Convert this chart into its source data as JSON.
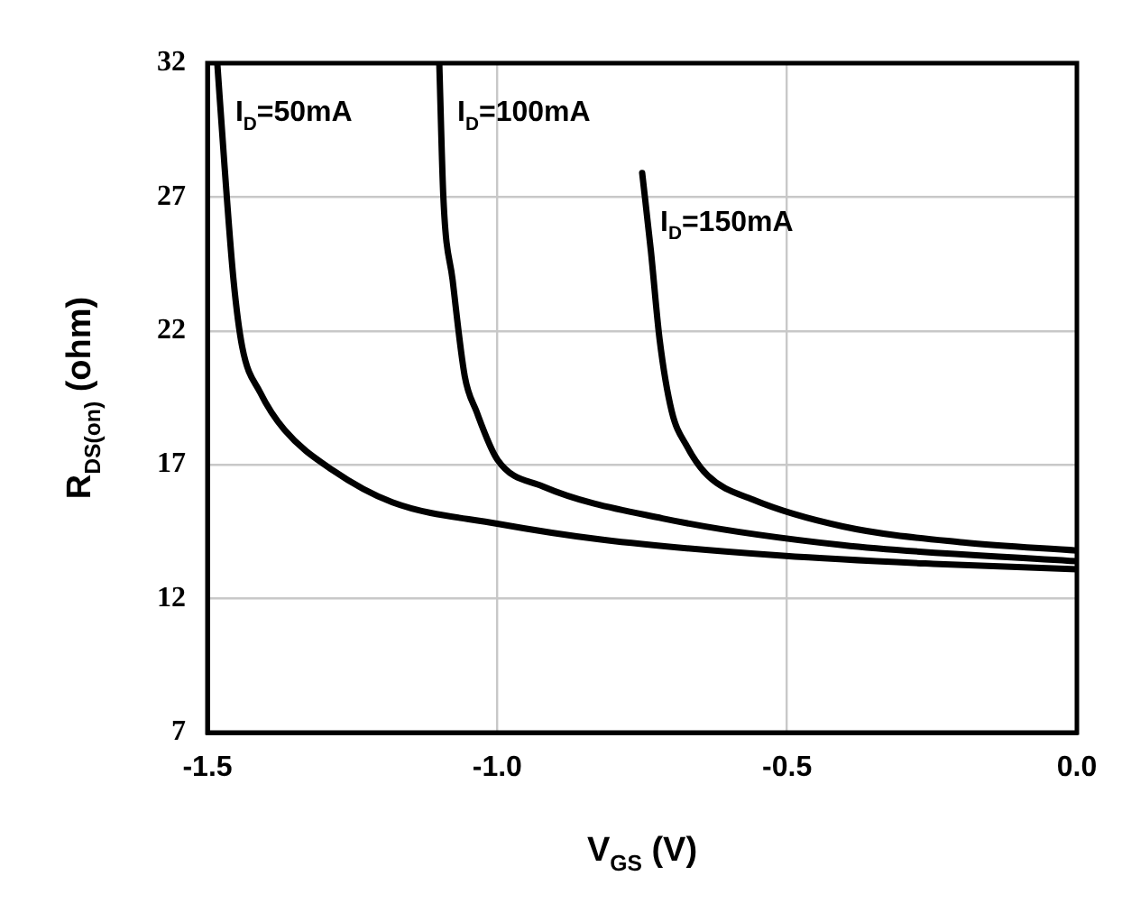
{
  "chart_data": {
    "type": "line",
    "xlabel": "V$_{GS}$ (V)",
    "ylabel": "R$_{DS(on)}$ (ohm)",
    "xlim": [
      -1.5,
      0
    ],
    "xticks": [
      -1.5,
      {
        "value": -1,
        "label": "-1.0"
      },
      -0.5,
      {
        "value": 0,
        "label": "0.0"
      }
    ],
    "ylim": [
      7,
      32
    ],
    "yticks": [
      7,
      12,
      17,
      22,
      27,
      32
    ],
    "grid": true,
    "legend": false,
    "marker": "none",
    "line_style": "solid",
    "series": [
      {
        "name": "I$_{D}$=50mA",
        "color": "#000000",
        "x": [
          -1.483,
          -1.471,
          -1.455,
          -1.44,
          -1.409,
          -1.367,
          -1.284,
          -1.181,
          -1.0,
          -0.818,
          -0.507,
          -0.248,
          0
        ],
        "values": [
          32,
          28.3,
          23.9,
          21.4,
          19.7,
          18.3,
          16.8,
          15.6,
          14.8,
          14.2,
          13.6,
          13.3,
          13.1
        ]
      },
      {
        "name": "I$_{D}$=100mA",
        "color": "#000000",
        "x": [
          -1.1,
          -1.093,
          -1.077,
          -1.056,
          -1.036,
          -1.0,
          -0.922,
          -0.715,
          -0.404,
          0
        ],
        "values": [
          32,
          27,
          23.9,
          20.3,
          19.0,
          17.2,
          16.2,
          15.0,
          14.0,
          13.4
        ]
      },
      {
        "name": "I$_{D}$=150mA",
        "color": "#000000",
        "x": [
          -0.75,
          -0.735,
          -0.72,
          -0.699,
          -0.673,
          -0.637,
          -0.559,
          -0.404,
          -0.196,
          0
        ],
        "values": [
          27.9,
          25.0,
          21.7,
          19.0,
          17.7,
          16.6,
          15.7,
          14.7,
          14.1,
          13.8
        ]
      }
    ]
  }
}
